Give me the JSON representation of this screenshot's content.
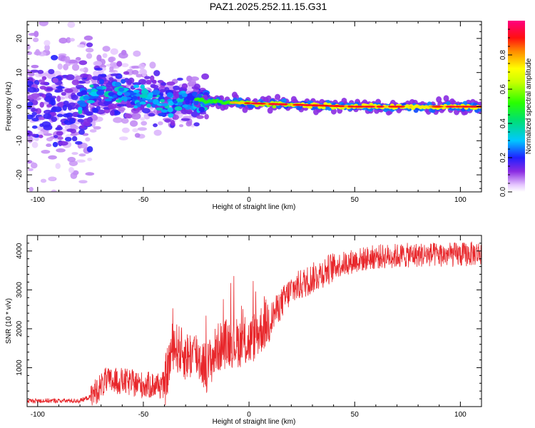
{
  "title": "PAZ1.2025.252.11.15.G31",
  "chart_data": [
    {
      "type": "heatmap",
      "xlabel": "Height of straight line (km)",
      "ylabel": "Frequency (Hz)",
      "xlim": [
        -105,
        110
      ],
      "ylim": [
        -25,
        25
      ],
      "xticks": [
        -100,
        -50,
        0,
        50,
        100
      ],
      "xtick_labels": [
        "-100",
        "-50",
        "0",
        "50",
        "100"
      ],
      "yticks": [
        -20,
        -10,
        0,
        10,
        20
      ],
      "ytick_labels": [
        "-20",
        "-10",
        "0",
        "10",
        "20"
      ],
      "description_ridge": [
        {
          "x": -100,
          "f": 1
        },
        {
          "x": -85,
          "f": 0
        },
        {
          "x": -70,
          "f": 5
        },
        {
          "x": -60,
          "f": 4
        },
        {
          "x": -50,
          "f": 3
        },
        {
          "x": -40,
          "f": 1
        },
        {
          "x": -30,
          "f": 2
        },
        {
          "x": -20,
          "f": 1.5
        },
        {
          "x": 0,
          "f": 1
        },
        {
          "x": 50,
          "f": 0
        },
        {
          "x": 110,
          "f": 0
        }
      ],
      "colorbar": {
        "label": "Normalized spectral amplitude",
        "range": [
          0,
          1
        ],
        "ticks": [
          0.0,
          0.2,
          0.4,
          0.6,
          0.8
        ],
        "tick_labels": [
          "0.0",
          "0.2",
          "0.4",
          "0.6",
          "0.8"
        ]
      }
    },
    {
      "type": "line",
      "xlabel": "Height of straight line (km)",
      "ylabel": "SNR (10 * v/v)",
      "xlim": [
        -105,
        110
      ],
      "ylim": [
        0,
        4400
      ],
      "xticks": [
        -100,
        -50,
        0,
        50,
        100
      ],
      "xtick_labels": [
        "-100",
        "-50",
        "0",
        "50",
        "100"
      ],
      "yticks": [
        1000,
        2000,
        3000,
        4000
      ],
      "ytick_labels": [
        "1000",
        "2000",
        "3000",
        "4000"
      ],
      "series_color": "#e8272b",
      "envelope": [
        {
          "x": -105,
          "snr": 150
        },
        {
          "x": -80,
          "snr": 150
        },
        {
          "x": -75,
          "snr": 250
        },
        {
          "x": -68,
          "snr": 650
        },
        {
          "x": -60,
          "snr": 650
        },
        {
          "x": -50,
          "snr": 550
        },
        {
          "x": -40,
          "snr": 550
        },
        {
          "x": -36,
          "snr": 1600
        },
        {
          "x": -30,
          "snr": 1300
        },
        {
          "x": -25,
          "snr": 1350
        },
        {
          "x": -20,
          "snr": 1000
        },
        {
          "x": -15,
          "snr": 1500
        },
        {
          "x": -10,
          "snr": 1650
        },
        {
          "x": 0,
          "snr": 1650
        },
        {
          "x": 5,
          "snr": 1950
        },
        {
          "x": 10,
          "snr": 2250
        },
        {
          "x": 20,
          "snr": 3000
        },
        {
          "x": 30,
          "snr": 3300
        },
        {
          "x": 40,
          "snr": 3600
        },
        {
          "x": 50,
          "snr": 3750
        },
        {
          "x": 60,
          "snr": 3850
        },
        {
          "x": 80,
          "snr": 3900
        },
        {
          "x": 100,
          "snr": 3900
        },
        {
          "x": 110,
          "snr": 3950
        }
      ]
    }
  ]
}
